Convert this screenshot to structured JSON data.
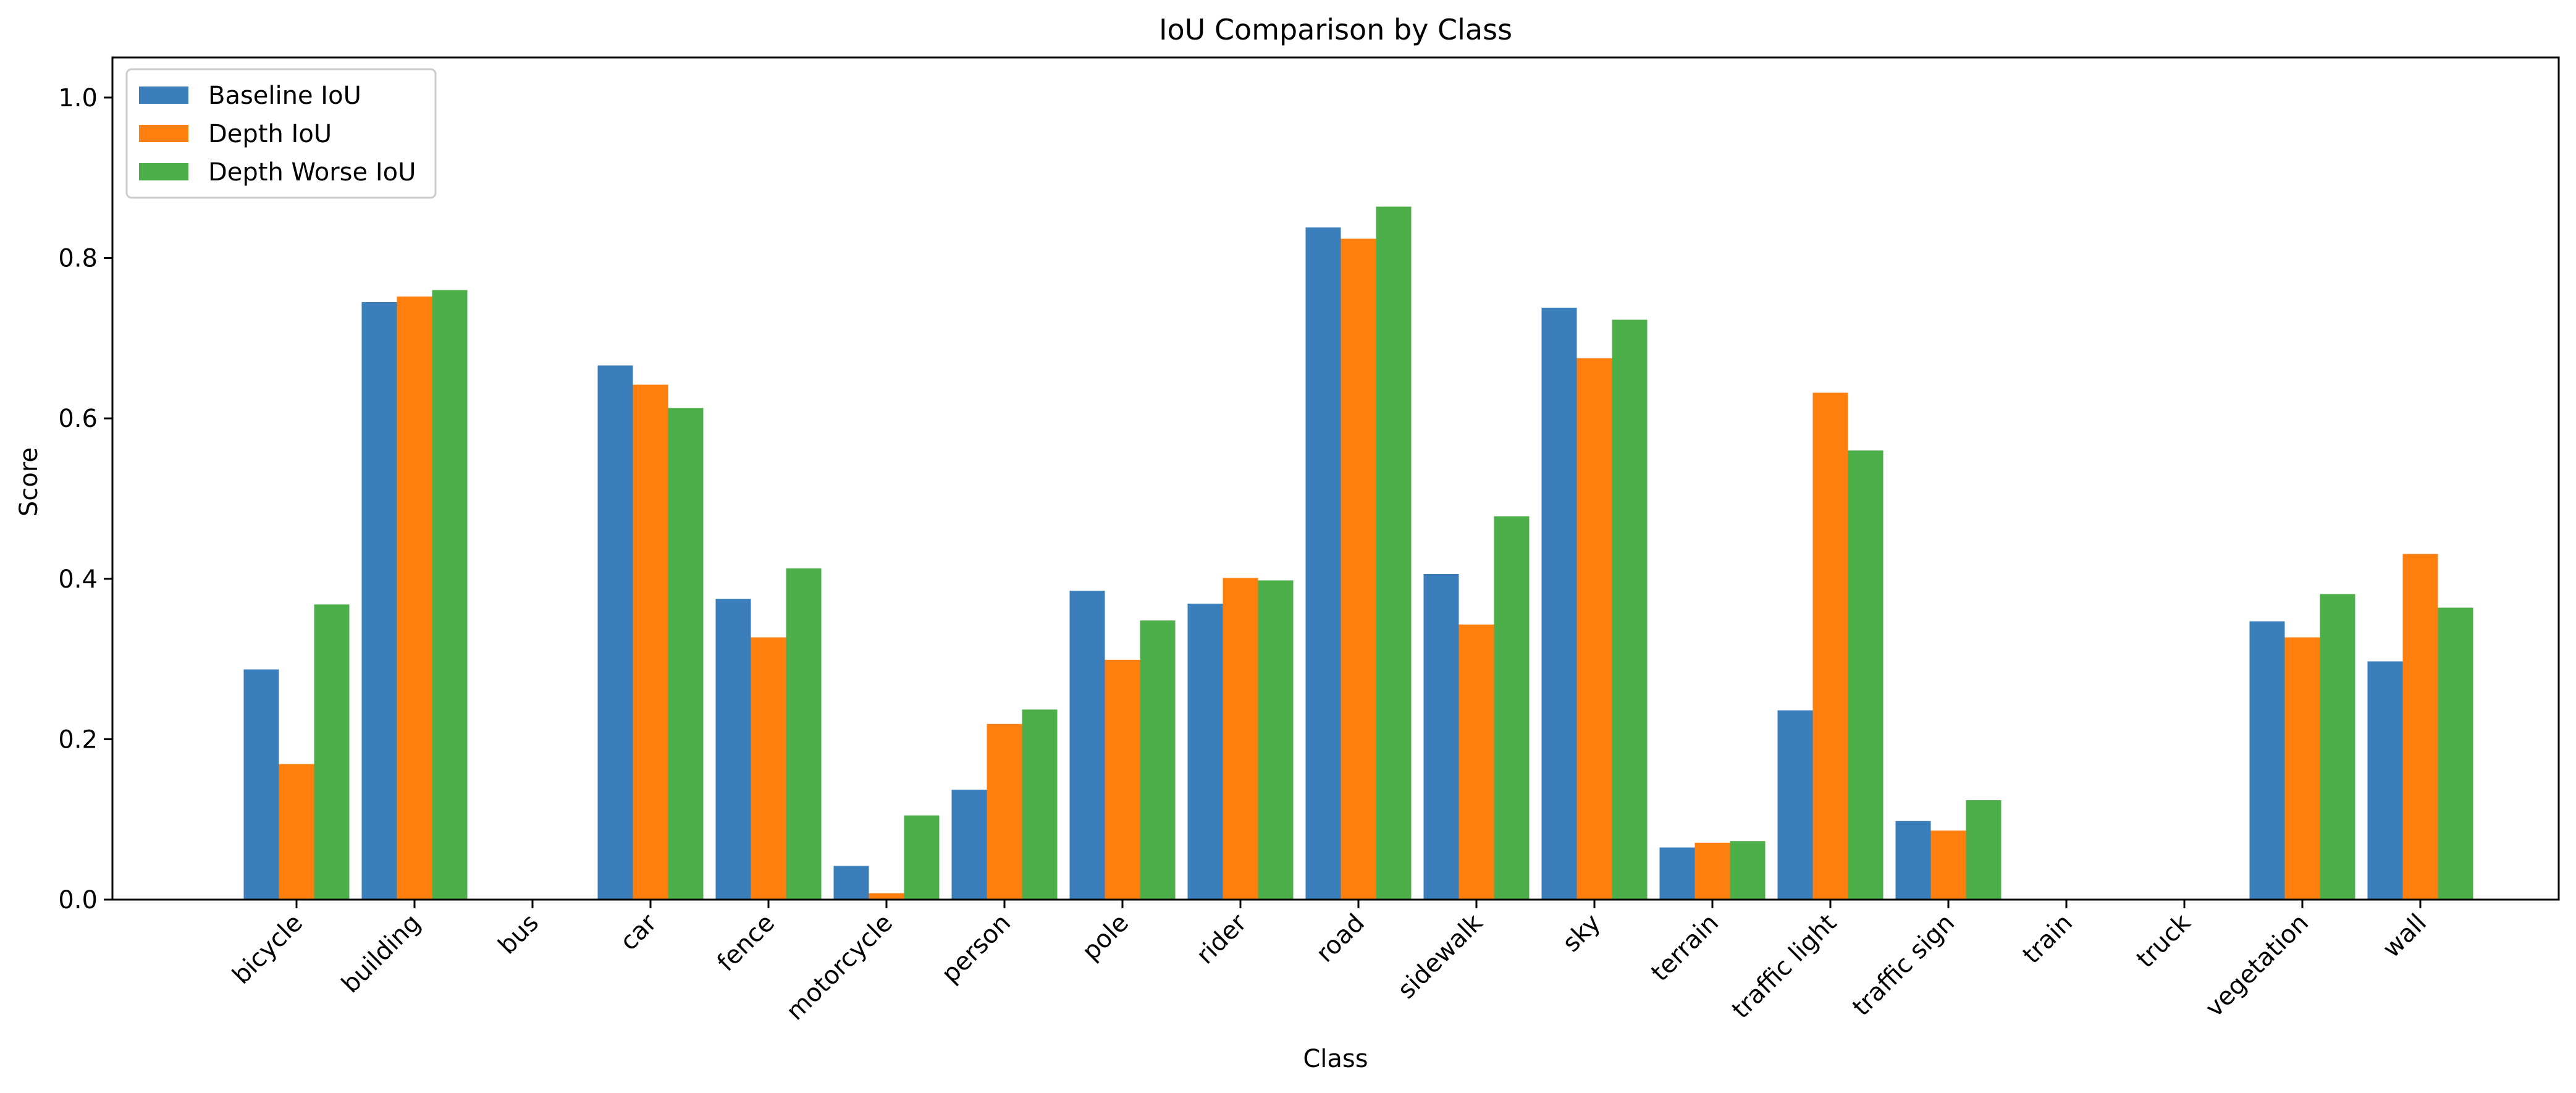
{
  "chart_data": {
    "type": "bar",
    "title": "IoU Comparison by Class",
    "xlabel": "Class",
    "ylabel": "Score",
    "ylim": [
      0,
      1.05
    ],
    "yticks": [
      "0.0",
      "0.2",
      "0.4",
      "0.6",
      "0.8",
      "1.0"
    ],
    "ytick_values": [
      0,
      0.2,
      0.4,
      0.6,
      0.8,
      1.0
    ],
    "grid": false,
    "legend_position": "top-left",
    "categories": [
      "bicycle",
      "building",
      "bus",
      "car",
      "fence",
      "motorcycle",
      "person",
      "pole",
      "rider",
      "road",
      "sidewalk",
      "sky",
      "terrain",
      "traffic light",
      "traffic sign",
      "train",
      "truck",
      "vegetation",
      "wall"
    ],
    "series": [
      {
        "name": "Baseline IoU",
        "color": "#3a7ebb",
        "values": [
          0.287,
          0.745,
          0.0,
          0.666,
          0.375,
          0.042,
          0.137,
          0.385,
          0.369,
          0.838,
          0.406,
          0.738,
          0.065,
          0.236,
          0.098,
          0.0,
          0.0,
          0.347,
          0.297
        ]
      },
      {
        "name": "Depth IoU",
        "color": "#ff7f0e",
        "values": [
          0.169,
          0.752,
          0.0,
          0.642,
          0.327,
          0.008,
          0.219,
          0.299,
          0.401,
          0.824,
          0.343,
          0.675,
          0.071,
          0.632,
          0.086,
          0.0,
          0.0,
          0.327,
          0.431
        ]
      },
      {
        "name": "Depth Worse IoU",
        "color": "#4daf4a",
        "values": [
          0.368,
          0.76,
          0.0,
          0.613,
          0.413,
          0.105,
          0.237,
          0.348,
          0.398,
          0.864,
          0.478,
          0.723,
          0.073,
          0.56,
          0.124,
          0.0,
          0.0,
          0.381,
          0.364
        ]
      }
    ]
  }
}
